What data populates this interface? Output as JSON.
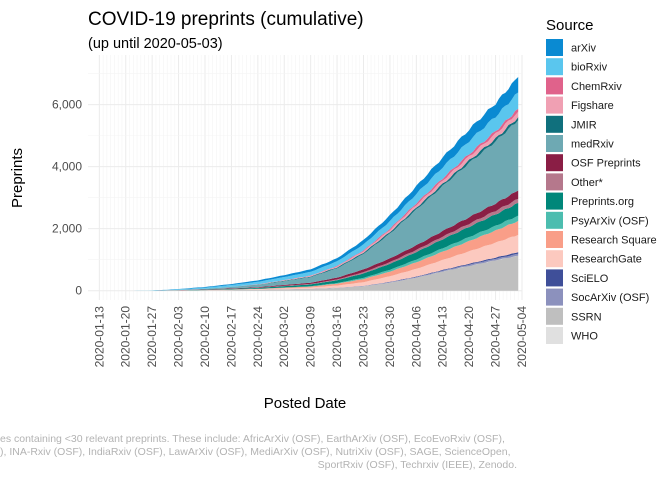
{
  "chart_data": {
    "type": "area",
    "stacked": true,
    "title": "COVID-19 preprints (cumulative)",
    "subtitle": "(up until 2020-05-03)",
    "xlabel": "Posted Date",
    "ylabel": "Preprints",
    "legend_title": "Source",
    "legend_position": "right",
    "grid": true,
    "x_ticks": [
      "2020-01-13",
      "2020-01-20",
      "2020-01-27",
      "2020-02-03",
      "2020-02-10",
      "2020-02-17",
      "2020-02-24",
      "2020-03-02",
      "2020-03-09",
      "2020-03-16",
      "2020-03-23",
      "2020-03-30",
      "2020-04-06",
      "2020-04-13",
      "2020-04-20",
      "2020-04-27",
      "2020-05-04"
    ],
    "y_ticks": [
      0,
      2000,
      4000,
      6000
    ],
    "y_tick_labels": [
      "0",
      "2,000",
      "4,000",
      "6,000"
    ],
    "xlim": [
      "2020-01-10",
      "2020-05-04"
    ],
    "ylim": [
      -300,
      7600
    ],
    "x": [
      "2020-01-13",
      "2020-01-20",
      "2020-01-27",
      "2020-02-03",
      "2020-02-10",
      "2020-02-17",
      "2020-02-24",
      "2020-03-02",
      "2020-03-09",
      "2020-03-16",
      "2020-03-23",
      "2020-03-30",
      "2020-04-06",
      "2020-04-13",
      "2020-04-20",
      "2020-04-27",
      "2020-05-03"
    ],
    "series": [
      {
        "name": "SSRN",
        "color": "#bfbfbf",
        "values": [
          0,
          0,
          0,
          5,
          10,
          20,
          30,
          45,
          60,
          90,
          140,
          260,
          420,
          620,
          800,
          980,
          1130
        ]
      },
      {
        "name": "WHO",
        "color": "#e0e0e0",
        "values": [
          0,
          0,
          0,
          0,
          0,
          0,
          0,
          0,
          0,
          0,
          0,
          0,
          0,
          0,
          0,
          0,
          0
        ]
      },
      {
        "name": "SocArXiv (OSF)",
        "color": "#8c91bd",
        "values": [
          0,
          0,
          0,
          0,
          0,
          0,
          0,
          2,
          3,
          5,
          10,
          15,
          20,
          30,
          40,
          50,
          60
        ]
      },
      {
        "name": "SciELO",
        "color": "#3f4f99",
        "values": [
          0,
          0,
          0,
          0,
          0,
          0,
          0,
          0,
          0,
          2,
          5,
          10,
          15,
          20,
          30,
          40,
          50
        ]
      },
      {
        "name": "ResearchGate",
        "color": "#fcc9bf",
        "values": [
          0,
          0,
          0,
          5,
          10,
          15,
          20,
          30,
          40,
          70,
          120,
          180,
          250,
          320,
          400,
          480,
          560
        ]
      },
      {
        "name": "Research Square",
        "color": "#f99e88",
        "values": [
          0,
          0,
          0,
          0,
          0,
          5,
          10,
          20,
          30,
          60,
          100,
          150,
          210,
          270,
          330,
          390,
          450
        ]
      },
      {
        "name": "PsyArXiv (OSF)",
        "color": "#4cbdaf",
        "values": [
          0,
          0,
          0,
          0,
          0,
          0,
          0,
          5,
          10,
          20,
          40,
          60,
          90,
          110,
          130,
          150,
          170
        ]
      },
      {
        "name": "Preprints.org",
        "color": "#00877a",
        "values": [
          0,
          0,
          0,
          5,
          10,
          20,
          30,
          45,
          60,
          90,
          140,
          190,
          240,
          290,
          330,
          370,
          410
        ]
      },
      {
        "name": "Other*",
        "color": "#b5788c",
        "values": [
          0,
          0,
          0,
          0,
          0,
          0,
          5,
          10,
          15,
          25,
          40,
          55,
          70,
          85,
          100,
          115,
          130
        ]
      },
      {
        "name": "OSF Preprints",
        "color": "#8a1e45",
        "values": [
          0,
          0,
          0,
          5,
          10,
          15,
          20,
          30,
          40,
          60,
          90,
          120,
          150,
          180,
          210,
          240,
          270
        ]
      },
      {
        "name": "medRxiv",
        "color": "#6ea9b3",
        "values": [
          0,
          0,
          0,
          5,
          20,
          40,
          70,
          120,
          180,
          300,
          500,
          800,
          1150,
          1450,
          1750,
          2000,
          2270
        ]
      },
      {
        "name": "JMIR",
        "color": "#10707d",
        "values": [
          0,
          0,
          0,
          0,
          0,
          5,
          10,
          15,
          20,
          30,
          40,
          50,
          60,
          70,
          80,
          90,
          100
        ]
      },
      {
        "name": "Figshare",
        "color": "#f0a0b3",
        "values": [
          0,
          0,
          0,
          0,
          0,
          5,
          10,
          15,
          20,
          30,
          50,
          70,
          90,
          110,
          130,
          150,
          170
        ]
      },
      {
        "name": "ChemRxiv",
        "color": "#e0628b",
        "values": [
          0,
          0,
          0,
          0,
          0,
          0,
          2,
          5,
          10,
          15,
          25,
          40,
          55,
          70,
          80,
          90,
          100
        ]
      },
      {
        "name": "bioRxiv",
        "color": "#5ac6ee",
        "values": [
          0,
          0,
          5,
          20,
          40,
          60,
          80,
          100,
          120,
          150,
          190,
          240,
          300,
          360,
          420,
          470,
          520
        ]
      },
      {
        "name": "arXiv",
        "color": "#0a8ad2",
        "values": [
          0,
          0,
          0,
          10,
          20,
          30,
          45,
          60,
          80,
          100,
          140,
          190,
          250,
          310,
          370,
          430,
          500
        ]
      }
    ],
    "legend_order": [
      "arXiv",
      "bioRxiv",
      "ChemRxiv",
      "Figshare",
      "JMIR",
      "medRxiv",
      "OSF Preprints",
      "Other*",
      "Preprints.org",
      "PsyArXiv (OSF)",
      "Research Square",
      "ResearchGate",
      "SciELO",
      "SocArXiv (OSF)",
      "SSRN",
      "WHO"
    ],
    "caption_lines": [
      "es containing <30 relevant preprints. These include: AfricArXiv (OSF), EarthArXiv (OSF), EcoEvoRxiv (OSF),",
      "), INA-Rxiv (OSF), IndiaRxiv (OSF), LawArXiv (OSF), MediArXiv (OSF), NutriXiv (OSF), SAGE, ScienceOpen,",
      "SportRxiv (OSF), Techrxiv (IEEE), Zenodo."
    ]
  }
}
